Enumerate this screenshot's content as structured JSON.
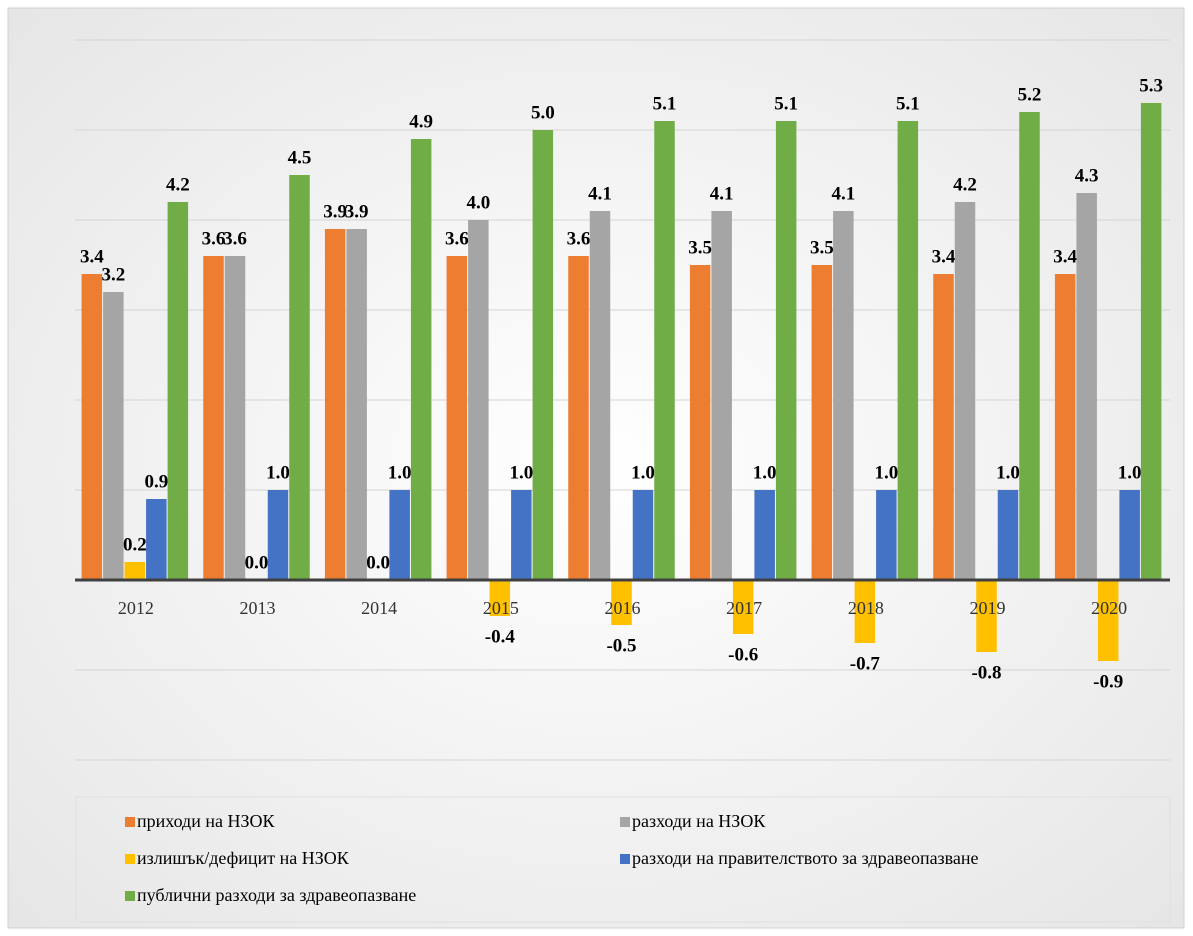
{
  "chart_data": {
    "type": "bar",
    "categories": [
      "2012",
      "2013",
      "2014",
      "2015",
      "2016",
      "2017",
      "2018",
      "2019",
      "2020"
    ],
    "series": [
      {
        "name": "приходи на НЗОК",
        "color": "#ed7d31",
        "values": [
          3.4,
          3.6,
          3.9,
          3.6,
          3.6,
          3.5,
          3.5,
          3.4,
          3.4
        ],
        "value_labels": [
          "3.4",
          "3.6",
          "3.9",
          "3.6",
          "3.6",
          "3.5",
          "3.5",
          "3.4",
          "3.4"
        ]
      },
      {
        "name": "разходи на НЗОК",
        "color": "#a5a5a5",
        "values": [
          3.2,
          3.6,
          3.9,
          4.0,
          4.1,
          4.1,
          4.1,
          4.2,
          4.3
        ],
        "value_labels": [
          "3.2",
          "3.6",
          "3.9",
          "4.0",
          "4.1",
          "4.1",
          "4.1",
          "4.2",
          "4.3"
        ]
      },
      {
        "name": "излишък/дефицит на НЗОК",
        "color": "#ffc000",
        "values": [
          0.2,
          0.0,
          0.0,
          -0.4,
          -0.5,
          -0.6,
          -0.7,
          -0.8,
          -0.9
        ],
        "value_labels": [
          "0.2",
          "0.0",
          "0.0",
          "-0.4",
          "-0.5",
          "-0.6",
          "-0.7",
          "-0.8",
          "-0.9"
        ]
      },
      {
        "name": "разходи на правителството за здравеопазване",
        "color": "#4472c4",
        "values": [
          0.9,
          1.0,
          1.0,
          1.0,
          1.0,
          1.0,
          1.0,
          1.0,
          1.0
        ],
        "value_labels": [
          "0.9",
          "1.0",
          "1.0",
          "1.0",
          "1.0",
          "1.0",
          "1.0",
          "1.0",
          "1.0"
        ]
      },
      {
        "name": "публични разходи за здравеопазване",
        "color": "#70ad47",
        "values": [
          4.2,
          4.5,
          4.9,
          5.0,
          5.1,
          5.1,
          5.1,
          5.2,
          5.3
        ],
        "value_labels": [
          "4.2",
          "4.5",
          "4.9",
          "5.0",
          "5.1",
          "5.1",
          "5.1",
          "5.2",
          "5.3"
        ]
      }
    ],
    "ylim": [
      -2,
      6
    ],
    "yticks": [
      -2,
      -1,
      0,
      1,
      2,
      3,
      4,
      5,
      6
    ],
    "grid": true,
    "legend": "bottom"
  }
}
